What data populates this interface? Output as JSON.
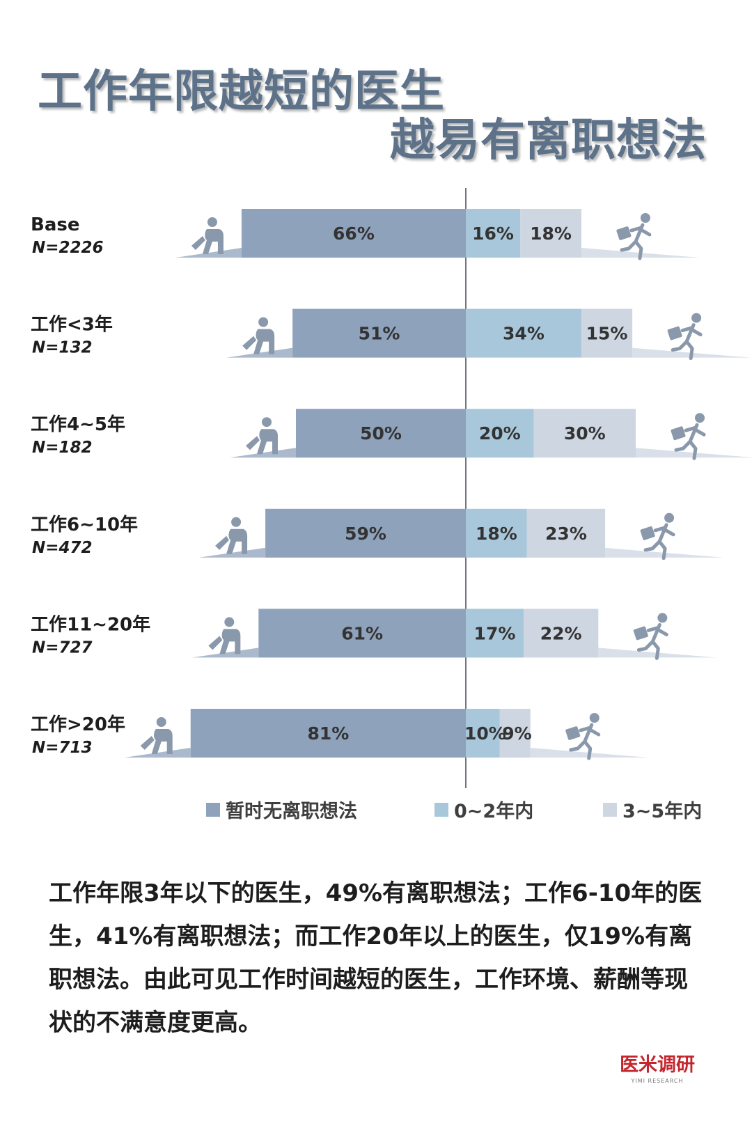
{
  "title": {
    "line1": "工作年限越短的医生",
    "line2": "越易有离职想法"
  },
  "colors": {
    "title": "#5d7289",
    "stay": "#8ea2bb",
    "leave_0_2": "#a9c7da",
    "leave_3_5": "#cdd6e1",
    "icon": "#8a98ab"
  },
  "chart_data": {
    "type": "bar",
    "orientation": "horizontal-diverging",
    "categories": [
      {
        "label": "Base",
        "n": "N=2226"
      },
      {
        "label": "工作<3年",
        "n": "N=132"
      },
      {
        "label": "工作4~5年",
        "n": "N=182"
      },
      {
        "label": "工作6~10年",
        "n": "N=472"
      },
      {
        "label": "工作11~20年",
        "n": "N=727"
      },
      {
        "label": "工作>20年",
        "n": "N=713"
      }
    ],
    "series": [
      {
        "name": "暂时无离职想法",
        "values": [
          66,
          51,
          50,
          59,
          61,
          81
        ],
        "labels": [
          "66%",
          "51%",
          "50%",
          "59%",
          "61%",
          "81%"
        ]
      },
      {
        "name": "0~2年内",
        "values": [
          16,
          34,
          20,
          18,
          17,
          10
        ],
        "labels": [
          "16%",
          "34%",
          "20%",
          "18%",
          "17%",
          "10%"
        ]
      },
      {
        "name": "3~5年内",
        "values": [
          18,
          15,
          30,
          23,
          22,
          9
        ],
        "labels": [
          "18%",
          "15%",
          "30%",
          "23%",
          "22%",
          "9%"
        ]
      }
    ],
    "unit": "%",
    "xlim": [
      -100,
      100
    ],
    "grid": false,
    "legend_position": "bottom"
  },
  "legend": [
    {
      "label": "暂时无离职想法",
      "color": "#8ea2bb"
    },
    {
      "label": "0~2年内",
      "color": "#a9c7da"
    },
    {
      "label": "3~5年内",
      "color": "#cdd6e1"
    }
  ],
  "icons": {
    "left": "sitting-person-icon",
    "right": "running-person-with-briefcase-icon"
  },
  "note": "工作年限3年以下的医生，49%有离职想法；工作6-10年的医生，41%有离职想法；而工作20年以上的医生，仅19%有离职想法。由此可见工作时间越短的医生，工作环境、薪酬等现状的不满意度更高。",
  "logo": {
    "name": "医米调研",
    "sub": "YIMI RESEARCH"
  }
}
